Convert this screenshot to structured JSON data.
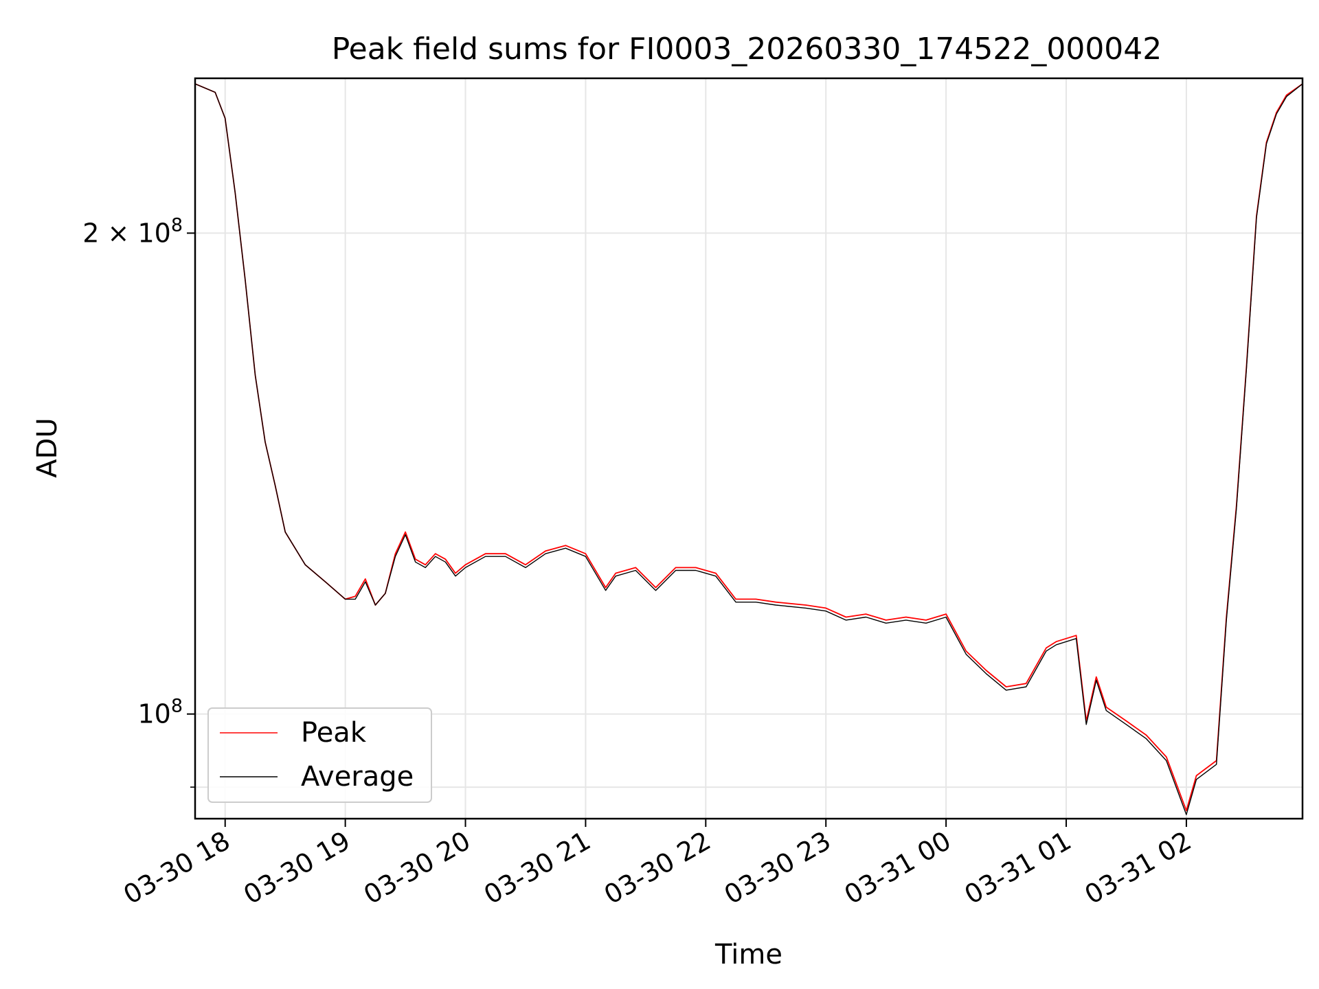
{
  "chart_data": {
    "type": "line",
    "title": "Peak field sums for FI0003_20260330_174522_000042",
    "xlabel": "Time",
    "ylabel": "ADU",
    "yscale": "log",
    "ylim": [
      86000000,
      250000000
    ],
    "xlim": [
      "2026-03-30 17:45",
      "2026-03-31 02:58"
    ],
    "x_tick_values": [
      "2026-03-30 18:00",
      "2026-03-30 19:00",
      "2026-03-30 20:00",
      "2026-03-30 21:00",
      "2026-03-30 22:00",
      "2026-03-30 23:00",
      "2026-03-31 00:00",
      "2026-03-31 01:00",
      "2026-03-31 02:00"
    ],
    "x_tick_labels": [
      "03-30 18",
      "03-30 19",
      "03-30 20",
      "03-30 21",
      "03-30 22",
      "03-30 23",
      "03-31 00",
      "03-31 01",
      "03-31 02"
    ],
    "y_major_ticks": [
      {
        "value": 200000000,
        "mantissa": "2",
        "times": "×",
        "base": "10",
        "exp": "8"
      },
      {
        "value": 100000000,
        "mantissa": "",
        "times": "",
        "base": "10",
        "exp": "8"
      }
    ],
    "y_minor_ticks": [
      90000000
    ],
    "grid": true,
    "legend_position": "lower-left",
    "x": [
      "2026-03-30 17:45",
      "2026-03-30 17:55",
      "2026-03-30 18:00",
      "2026-03-30 18:05",
      "2026-03-30 18:10",
      "2026-03-30 18:15",
      "2026-03-30 18:20",
      "2026-03-30 18:25",
      "2026-03-30 18:30",
      "2026-03-30 18:40",
      "2026-03-30 18:50",
      "2026-03-30 19:00",
      "2026-03-30 19:05",
      "2026-03-30 19:10",
      "2026-03-30 19:15",
      "2026-03-30 19:20",
      "2026-03-30 19:25",
      "2026-03-30 19:30",
      "2026-03-30 19:35",
      "2026-03-30 19:40",
      "2026-03-30 19:45",
      "2026-03-30 19:50",
      "2026-03-30 19:55",
      "2026-03-30 20:00",
      "2026-03-30 20:10",
      "2026-03-30 20:20",
      "2026-03-30 20:30",
      "2026-03-30 20:40",
      "2026-03-30 20:50",
      "2026-03-30 21:00",
      "2026-03-30 21:10",
      "2026-03-30 21:15",
      "2026-03-30 21:25",
      "2026-03-30 21:35",
      "2026-03-30 21:45",
      "2026-03-30 21:55",
      "2026-03-30 22:05",
      "2026-03-30 22:15",
      "2026-03-30 22:25",
      "2026-03-30 22:35",
      "2026-03-30 22:50",
      "2026-03-30 23:00",
      "2026-03-30 23:10",
      "2026-03-30 23:20",
      "2026-03-30 23:30",
      "2026-03-30 23:40",
      "2026-03-30 23:50",
      "2026-03-31 00:00",
      "2026-03-31 00:10",
      "2026-03-31 00:20",
      "2026-03-31 00:30",
      "2026-03-31 00:40",
      "2026-03-31 00:50",
      "2026-03-31 00:55",
      "2026-03-31 01:05",
      "2026-03-31 01:10",
      "2026-03-31 01:15",
      "2026-03-31 01:20",
      "2026-03-31 01:30",
      "2026-03-31 01:40",
      "2026-03-31 01:50",
      "2026-03-31 02:00",
      "2026-03-31 02:05",
      "2026-03-31 02:10",
      "2026-03-31 02:15",
      "2026-03-31 02:20",
      "2026-03-31 02:25",
      "2026-03-31 02:30",
      "2026-03-31 02:35",
      "2026-03-31 02:40",
      "2026-03-31 02:45",
      "2026-03-31 02:50",
      "2026-03-31 02:58"
    ],
    "series": [
      {
        "name": "Peak",
        "color": "#ff0000",
        "values": [
          248000000,
          245000000,
          236000000,
          212000000,
          187000000,
          163000000,
          148000000,
          139000000,
          130000000,
          124000000,
          121000000,
          118000000,
          118500000,
          121500000,
          117000000,
          119000000,
          126000000,
          130000000,
          125000000,
          124000000,
          126000000,
          125000000,
          122500000,
          124000000,
          126000000,
          126000000,
          124000000,
          126500000,
          127500000,
          126000000,
          120000000,
          122500000,
          123500000,
          120000000,
          123500000,
          123500000,
          122500000,
          118000000,
          118000000,
          117500000,
          117000000,
          116500000,
          115000000,
          115500000,
          114500000,
          115000000,
          114500000,
          115500000,
          109500000,
          106500000,
          104000000,
          104500000,
          110000000,
          111000000,
          112000000,
          99000000,
          105500000,
          101000000,
          99000000,
          97000000,
          94000000,
          87000000,
          91500000,
          92500000,
          93500000,
          115000000,
          135000000,
          165000000,
          205000000,
          228000000,
          238000000,
          244000000,
          248000000
        ]
      },
      {
        "name": "Average",
        "color": "#000000",
        "values": [
          248000000,
          245000000,
          236000000,
          212000000,
          187000000,
          163000000,
          148000000,
          139000000,
          130000000,
          124000000,
          121000000,
          118000000,
          118000000,
          121000000,
          117000000,
          119000000,
          125500000,
          129500000,
          124500000,
          123500000,
          125500000,
          124500000,
          122000000,
          123500000,
          125500000,
          125500000,
          123500000,
          126000000,
          127000000,
          125500000,
          119500000,
          122000000,
          123000000,
          119500000,
          123000000,
          123000000,
          122000000,
          117500000,
          117500000,
          117000000,
          116500000,
          116000000,
          114500000,
          115000000,
          114000000,
          114500000,
          114000000,
          115000000,
          109000000,
          106000000,
          103500000,
          104000000,
          109500000,
          110500000,
          111500000,
          98500000,
          105000000,
          100500000,
          98500000,
          96500000,
          93500000,
          86500000,
          91000000,
          92000000,
          93000000,
          114500000,
          134500000,
          164500000,
          204500000,
          227500000,
          237500000,
          243500000,
          248000000
        ]
      }
    ]
  }
}
